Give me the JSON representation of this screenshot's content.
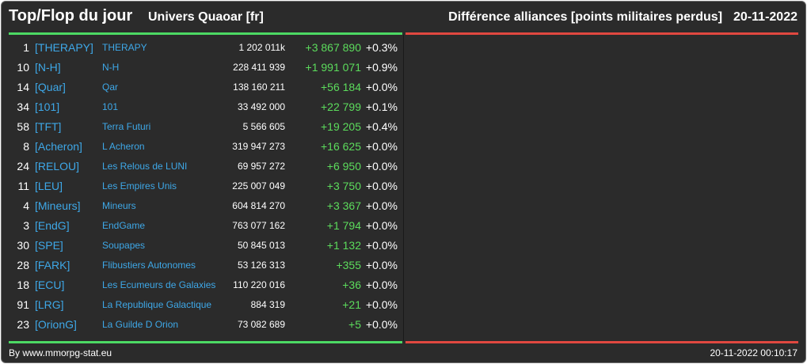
{
  "header": {
    "title": "Top/Flop du jour",
    "universe": "Univers Quaoar [fr]",
    "category": "Différence alliances [points militaires perdus]",
    "date": "20-11-2022"
  },
  "columns": [
    "rank",
    "tag",
    "name",
    "points",
    "diff",
    "pct"
  ],
  "rows": [
    {
      "rank": "1",
      "tag": "[THERAPY]",
      "name": "THERAPY",
      "points": "1 202 011k",
      "diff": "+3 867 890",
      "pct": "+0.3%"
    },
    {
      "rank": "10",
      "tag": "[N-H]",
      "name": "N-H",
      "points": "228 411 939",
      "diff": "+1 991 071",
      "pct": "+0.9%"
    },
    {
      "rank": "14",
      "tag": "[Quar]",
      "name": "Qar",
      "points": "138 160 211",
      "diff": "+56 184",
      "pct": "+0.0%"
    },
    {
      "rank": "34",
      "tag": "[101]",
      "name": "101",
      "points": "33 492 000",
      "diff": "+22 799",
      "pct": "+0.1%"
    },
    {
      "rank": "58",
      "tag": "[TFT]",
      "name": "Terra Futuri",
      "points": "5 566 605",
      "diff": "+19 205",
      "pct": "+0.4%"
    },
    {
      "rank": "8",
      "tag": "[Acheron]",
      "name": "L Acheron",
      "points": "319 947 273",
      "diff": "+16 625",
      "pct": "+0.0%"
    },
    {
      "rank": "24",
      "tag": "[RELOU]",
      "name": "Les Relous de LUNI",
      "points": "69 957 272",
      "diff": "+6 950",
      "pct": "+0.0%"
    },
    {
      "rank": "11",
      "tag": "[LEU]",
      "name": "Les Empires Unis",
      "points": "225 007 049",
      "diff": "+3 750",
      "pct": "+0.0%"
    },
    {
      "rank": "4",
      "tag": "[Mineurs]",
      "name": "Mineurs",
      "points": "604 814 270",
      "diff": "+3 367",
      "pct": "+0.0%"
    },
    {
      "rank": "3",
      "tag": "[EndG]",
      "name": "EndGame",
      "points": "763 077 162",
      "diff": "+1 794",
      "pct": "+0.0%"
    },
    {
      "rank": "30",
      "tag": "[SPE]",
      "name": "Soupapes",
      "points": "50 845 013",
      "diff": "+1 132",
      "pct": "+0.0%"
    },
    {
      "rank": "28",
      "tag": "[FARK]",
      "name": "Flibustiers Autonomes",
      "points": "53 126 313",
      "diff": "+355",
      "pct": "+0.0%"
    },
    {
      "rank": "18",
      "tag": "[ECU]",
      "name": "Les Ecumeurs de Galaxies",
      "points": "110 220 016",
      "diff": "+36",
      "pct": "+0.0%"
    },
    {
      "rank": "91",
      "tag": "[LRG]",
      "name": "La Republique Galactique",
      "points": "884 319",
      "diff": "+21",
      "pct": "+0.0%"
    },
    {
      "rank": "23",
      "tag": "[OrionG]",
      "name": "La Guilde D Orion",
      "points": "73 082 689",
      "diff": "+5",
      "pct": "+0.0%"
    }
  ],
  "footer": {
    "credit": "By www.mmorpg-stat.eu",
    "timestamp": "20-11-2022 00:10:17"
  },
  "colors": {
    "background": "#2b2b2b",
    "top_bar": "#4cd964",
    "flop_bar": "#e04840",
    "link": "#3ea8e8",
    "positive": "#5cdc5c"
  }
}
